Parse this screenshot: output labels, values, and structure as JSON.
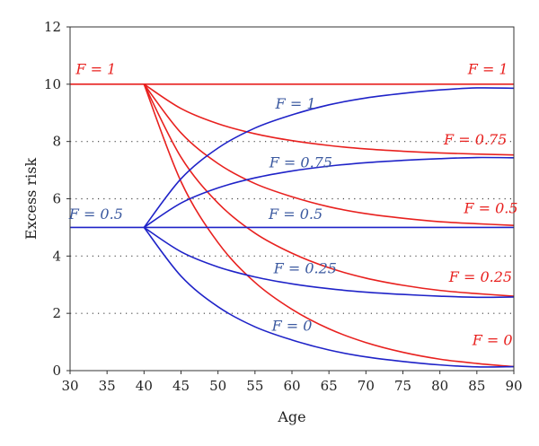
{
  "chart_data": {
    "type": "line",
    "title": "",
    "xlabel": "Age",
    "ylabel": "Excess risk",
    "xlim": [
      30,
      90
    ],
    "ylim": [
      0,
      12
    ],
    "xticks": [
      30,
      35,
      40,
      45,
      50,
      55,
      60,
      65,
      70,
      75,
      80,
      85,
      90
    ],
    "yticks": [
      0,
      2,
      4,
      6,
      8,
      10,
      12
    ],
    "grid": "horizontal dotted",
    "legend": "none",
    "colors": {
      "red": "#e8211f",
      "blue": "#1f23c8",
      "red_text": "#e8211f",
      "blue_text": "#3c5aa0"
    },
    "series": [
      {
        "group": "red",
        "x": [
          30,
          40,
          50,
          60,
          70,
          80,
          90
        ],
        "y": [
          10,
          10,
          10,
          10,
          10,
          10,
          10
        ]
      },
      {
        "group": "red",
        "x": [
          40,
          45,
          50,
          55,
          60,
          65,
          70,
          75,
          80,
          85,
          90
        ],
        "y": [
          10,
          9.15,
          8.62,
          8.27,
          8.03,
          7.86,
          7.74,
          7.66,
          7.6,
          7.56,
          7.53
        ]
      },
      {
        "group": "red",
        "x": [
          40,
          45,
          50,
          55,
          60,
          65,
          70,
          75,
          80,
          85,
          90
        ],
        "y": [
          10,
          8.3,
          7.23,
          6.53,
          6.07,
          5.72,
          5.48,
          5.32,
          5.2,
          5.13,
          5.07
        ]
      },
      {
        "group": "red",
        "x": [
          40,
          45,
          50,
          55,
          60,
          65,
          70,
          75,
          80,
          85,
          90
        ],
        "y": [
          10,
          7.45,
          5.85,
          4.8,
          4.1,
          3.59,
          3.23,
          2.98,
          2.8,
          2.69,
          2.6
        ]
      },
      {
        "group": "red",
        "x": [
          40,
          45,
          50,
          55,
          60,
          65,
          70,
          75,
          80,
          85,
          90
        ],
        "y": [
          10,
          6.6,
          4.47,
          3.08,
          2.14,
          1.46,
          0.98,
          0.64,
          0.4,
          0.25,
          0.14
        ]
      },
      {
        "group": "blue",
        "x": [
          30,
          40,
          50,
          60,
          70,
          80,
          90
        ],
        "y": [
          5,
          5,
          5,
          5,
          5,
          5,
          5
        ]
      },
      {
        "group": "blue",
        "x": [
          40,
          45,
          50,
          55,
          60,
          65,
          70,
          75,
          80,
          85,
          90
        ],
        "y": [
          5,
          6.7,
          7.77,
          8.47,
          8.93,
          9.28,
          9.52,
          9.68,
          9.8,
          9.87,
          9.86
        ]
      },
      {
        "group": "blue",
        "x": [
          40,
          45,
          50,
          55,
          60,
          65,
          70,
          75,
          80,
          85,
          90
        ],
        "y": [
          5,
          5.85,
          6.38,
          6.73,
          6.97,
          7.14,
          7.26,
          7.34,
          7.4,
          7.44,
          7.43
        ]
      },
      {
        "group": "blue",
        "x": [
          40,
          45,
          50,
          55,
          60,
          65,
          70,
          75,
          80,
          85,
          90
        ],
        "y": [
          5,
          4.15,
          3.62,
          3.27,
          3.03,
          2.86,
          2.74,
          2.66,
          2.6,
          2.56,
          2.57
        ]
      },
      {
        "group": "blue",
        "x": [
          40,
          45,
          50,
          55,
          60,
          65,
          70,
          75,
          80,
          85,
          90
        ],
        "y": [
          5,
          3.3,
          2.23,
          1.53,
          1.07,
          0.72,
          0.48,
          0.32,
          0.2,
          0.13,
          0.14
        ]
      }
    ],
    "annotations": [
      {
        "text": "F = 1",
        "x": 33.5,
        "y": 10.35,
        "group": "red",
        "anchor": "middle"
      },
      {
        "text": "F = 1",
        "x": 86.5,
        "y": 10.35,
        "group": "red",
        "anchor": "middle"
      },
      {
        "text": "F = 0.75",
        "x": 84.8,
        "y": 7.9,
        "group": "red",
        "anchor": "middle"
      },
      {
        "text": "F = 0.5",
        "x": 86.9,
        "y": 5.5,
        "group": "red",
        "anchor": "middle"
      },
      {
        "text": "F = 0.25",
        "x": 85.5,
        "y": 3.1,
        "group": "red",
        "anchor": "middle"
      },
      {
        "text": "F = 0",
        "x": 87.1,
        "y": 0.9,
        "group": "red",
        "anchor": "middle"
      },
      {
        "text": "F = 1",
        "x": 60.5,
        "y": 9.15,
        "group": "blue",
        "anchor": "middle"
      },
      {
        "text": "F = 0.75",
        "x": 61.2,
        "y": 7.1,
        "group": "blue",
        "anchor": "middle"
      },
      {
        "text": "F = 0.5",
        "x": 33.5,
        "y": 5.3,
        "group": "blue",
        "anchor": "middle"
      },
      {
        "text": "F = 0.5",
        "x": 60.5,
        "y": 5.3,
        "group": "blue",
        "anchor": "middle"
      },
      {
        "text": "F = 0.25",
        "x": 61.8,
        "y": 3.4,
        "group": "blue",
        "anchor": "middle"
      },
      {
        "text": "F = 0",
        "x": 60.0,
        "y": 1.4,
        "group": "blue",
        "anchor": "middle"
      }
    ]
  }
}
